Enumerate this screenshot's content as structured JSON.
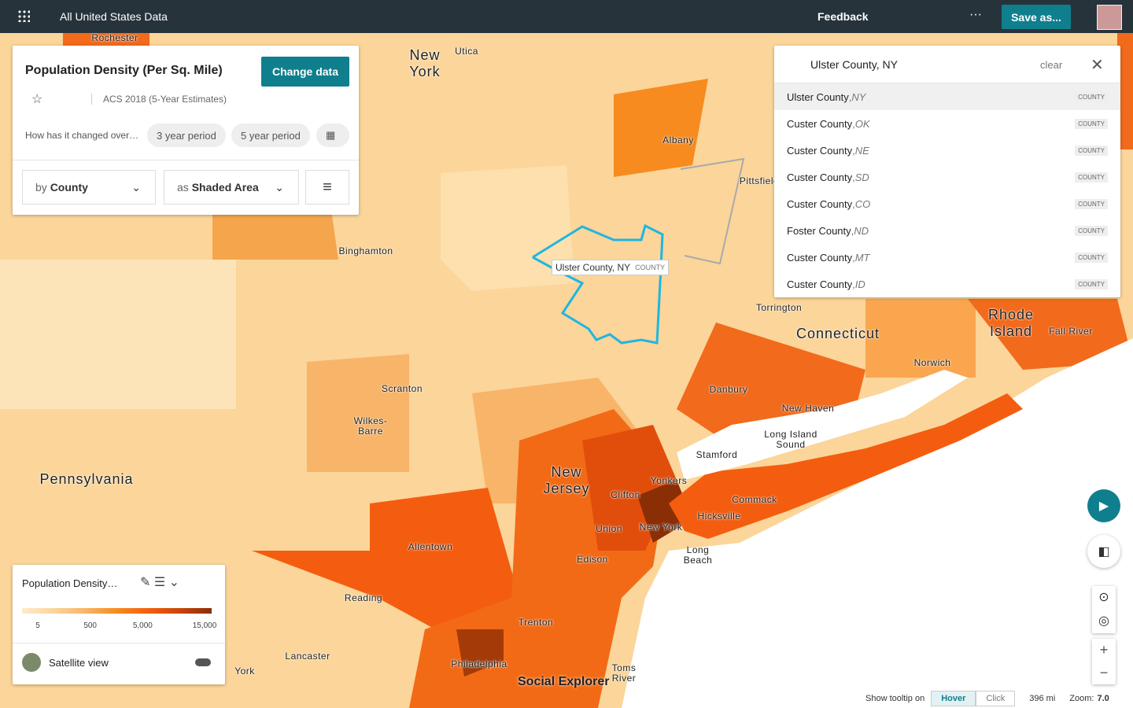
{
  "topbar": {
    "title": "All United States Data",
    "feedback": "Feedback",
    "save": "Save as..."
  },
  "data_panel": {
    "title": "Population Density (Per Sq. Mile)",
    "change_button": "Change data",
    "source": "ACS 2018 (5-Year Estimates)",
    "change_prompt": "How has it changed over…",
    "periods": [
      "3 year period",
      "5 year period"
    ],
    "geo": {
      "prefix": "by",
      "value": "County"
    },
    "viz": {
      "prefix": "as",
      "value": "Shaded Area"
    }
  },
  "search": {
    "query": "Ulster County, NY",
    "clear": "clear",
    "results": [
      {
        "name": "Ulster County",
        "state": "NY",
        "type": "COUNTY"
      },
      {
        "name": "Custer County",
        "state": "OK",
        "type": "COUNTY"
      },
      {
        "name": "Custer County",
        "state": "NE",
        "type": "COUNTY"
      },
      {
        "name": "Custer County",
        "state": "SD",
        "type": "COUNTY"
      },
      {
        "name": "Custer County",
        "state": "CO",
        "type": "COUNTY"
      },
      {
        "name": "Foster County",
        "state": "ND",
        "type": "COUNTY"
      },
      {
        "name": "Custer County",
        "state": "MT",
        "type": "COUNTY"
      },
      {
        "name": "Custer County",
        "state": "ID",
        "type": "COUNTY"
      }
    ]
  },
  "tooltip": {
    "name": "Ulster County, NY",
    "type": "COUNTY"
  },
  "legend": {
    "title": "Population Density…",
    "ticks": [
      "5",
      "500",
      "5,000",
      "15,000"
    ],
    "satellite": "Satellite view"
  },
  "map_labels": [
    "Rochester",
    "Utica",
    "New\nYork",
    "Albany",
    "Pittsfield",
    "Binghamton",
    "Torrington",
    "Connecticut",
    "Rhode\nIsland",
    "Fall River",
    "Norwich",
    "Scranton",
    "Wilkes-\nBarre",
    "Danbury",
    "New Haven",
    "Long Island\nSound",
    "Stamford",
    "Pennsylvania",
    "New\nJersey",
    "Yonkers",
    "Clifton",
    "Union",
    "New York",
    "Hicksville",
    "Commack",
    "Edison",
    "Long\nBeach",
    "Allentown",
    "Reading",
    "Trenton",
    "Lancaster",
    "York",
    "Philadelphia",
    "Toms\nRiver"
  ],
  "brand": "Social Explorer",
  "footer": {
    "tooltip_label": "Show tooltip on",
    "hover": "Hover",
    "click": "Click",
    "scale": "396 mi",
    "zoom_label": "Zoom:",
    "zoom": "7.0"
  }
}
